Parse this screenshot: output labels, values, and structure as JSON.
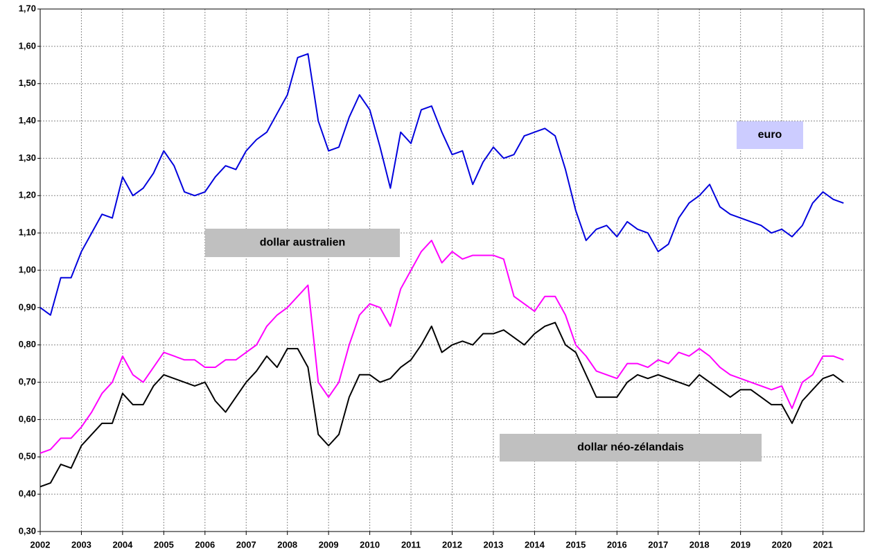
{
  "chart_data": {
    "type": "line",
    "x": [
      2002,
      2002.25,
      2002.5,
      2002.75,
      2003,
      2003.25,
      2003.5,
      2003.75,
      2004,
      2004.25,
      2004.5,
      2004.75,
      2005,
      2005.25,
      2005.5,
      2005.75,
      2006,
      2006.25,
      2006.5,
      2006.75,
      2007,
      2007.25,
      2007.5,
      2007.75,
      2008,
      2008.25,
      2008.5,
      2008.75,
      2009,
      2009.25,
      2009.5,
      2009.75,
      2010,
      2010.25,
      2010.5,
      2010.75,
      2011,
      2011.25,
      2011.5,
      2011.75,
      2012,
      2012.25,
      2012.5,
      2012.75,
      2013,
      2013.25,
      2013.5,
      2013.75,
      2014,
      2014.25,
      2014.5,
      2014.75,
      2015,
      2015.25,
      2015.5,
      2015.75,
      2016,
      2016.25,
      2016.5,
      2016.75,
      2017,
      2017.25,
      2017.5,
      2017.75,
      2018,
      2018.25,
      2018.5,
      2018.75,
      2019,
      2019.25,
      2019.5,
      2019.75,
      2020,
      2020.25,
      2020.5,
      2020.75,
      2021,
      2021.25,
      2021.5
    ],
    "series": [
      {
        "name": "euro",
        "color": "#0000dd",
        "values": [
          0.9,
          0.88,
          0.98,
          0.98,
          1.05,
          1.1,
          1.15,
          1.14,
          1.25,
          1.2,
          1.22,
          1.26,
          1.32,
          1.28,
          1.21,
          1.2,
          1.21,
          1.25,
          1.28,
          1.27,
          1.32,
          1.35,
          1.37,
          1.42,
          1.47,
          1.57,
          1.58,
          1.4,
          1.32,
          1.33,
          1.41,
          1.47,
          1.43,
          1.33,
          1.22,
          1.37,
          1.34,
          1.43,
          1.44,
          1.37,
          1.31,
          1.32,
          1.23,
          1.29,
          1.33,
          1.3,
          1.31,
          1.36,
          1.37,
          1.38,
          1.36,
          1.27,
          1.16,
          1.08,
          1.11,
          1.12,
          1.09,
          1.13,
          1.11,
          1.1,
          1.05,
          1.07,
          1.14,
          1.18,
          1.2,
          1.23,
          1.17,
          1.15,
          1.14,
          1.13,
          1.12,
          1.1,
          1.11,
          1.09,
          1.12,
          1.18,
          1.21,
          1.19,
          1.18
        ]
      },
      {
        "name": "dollar australien",
        "color": "#ff00ff",
        "values": [
          0.51,
          0.52,
          0.55,
          0.55,
          0.58,
          0.62,
          0.67,
          0.7,
          0.77,
          0.72,
          0.7,
          0.74,
          0.78,
          0.77,
          0.76,
          0.76,
          0.74,
          0.74,
          0.76,
          0.76,
          0.78,
          0.8,
          0.85,
          0.88,
          0.9,
          0.93,
          0.96,
          0.7,
          0.66,
          0.7,
          0.8,
          0.88,
          0.91,
          0.9,
          0.85,
          0.95,
          1.0,
          1.05,
          1.08,
          1.02,
          1.05,
          1.03,
          1.04,
          1.04,
          1.04,
          1.03,
          0.93,
          0.91,
          0.89,
          0.93,
          0.93,
          0.88,
          0.8,
          0.77,
          0.73,
          0.72,
          0.71,
          0.75,
          0.75,
          0.74,
          0.76,
          0.75,
          0.78,
          0.77,
          0.79,
          0.77,
          0.74,
          0.72,
          0.71,
          0.7,
          0.69,
          0.68,
          0.69,
          0.63,
          0.7,
          0.72,
          0.77,
          0.77,
          0.76
        ]
      },
      {
        "name": "dollar néo-zélandais",
        "color": "#000000",
        "values": [
          0.42,
          0.43,
          0.48,
          0.47,
          0.53,
          0.56,
          0.59,
          0.59,
          0.67,
          0.64,
          0.64,
          0.69,
          0.72,
          0.71,
          0.7,
          0.69,
          0.7,
          0.65,
          0.62,
          0.66,
          0.7,
          0.73,
          0.77,
          0.74,
          0.79,
          0.79,
          0.74,
          0.56,
          0.53,
          0.56,
          0.66,
          0.72,
          0.72,
          0.7,
          0.71,
          0.74,
          0.76,
          0.8,
          0.85,
          0.78,
          0.8,
          0.81,
          0.8,
          0.83,
          0.83,
          0.84,
          0.82,
          0.8,
          0.83,
          0.85,
          0.86,
          0.8,
          0.78,
          0.72,
          0.66,
          0.66,
          0.66,
          0.7,
          0.72,
          0.71,
          0.72,
          0.71,
          0.7,
          0.69,
          0.72,
          0.7,
          0.68,
          0.66,
          0.68,
          0.68,
          0.66,
          0.64,
          0.64,
          0.59,
          0.65,
          0.68,
          0.71,
          0.72,
          0.7
        ]
      }
    ],
    "xlim": [
      2002,
      2022
    ],
    "xticks": [
      2002,
      2003,
      2004,
      2005,
      2006,
      2007,
      2008,
      2009,
      2010,
      2011,
      2012,
      2013,
      2014,
      2015,
      2016,
      2017,
      2018,
      2019,
      2020,
      2021
    ],
    "ylim": [
      0.3,
      1.7
    ],
    "yticks": [
      {
        "value": 0.3,
        "label": "0,30"
      },
      {
        "value": 0.4,
        "label": "0,40"
      },
      {
        "value": 0.5,
        "label": "0,50"
      },
      {
        "value": 0.6,
        "label": "0,60"
      },
      {
        "value": 0.7,
        "label": "0,70"
      },
      {
        "value": 0.8,
        "label": "0,80"
      },
      {
        "value": 0.9,
        "label": "0,90"
      },
      {
        "value": 1.0,
        "label": "1,00"
      },
      {
        "value": 1.1,
        "label": "1,10"
      },
      {
        "value": 1.2,
        "label": "1,20"
      },
      {
        "value": 1.3,
        "label": "1,30"
      },
      {
        "value": 1.4,
        "label": "1,40"
      },
      {
        "value": 1.5,
        "label": "1,50"
      },
      {
        "value": 1.6,
        "label": "1,60"
      },
      {
        "value": 1.7,
        "label": "1,70"
      }
    ],
    "grid": true
  }
}
